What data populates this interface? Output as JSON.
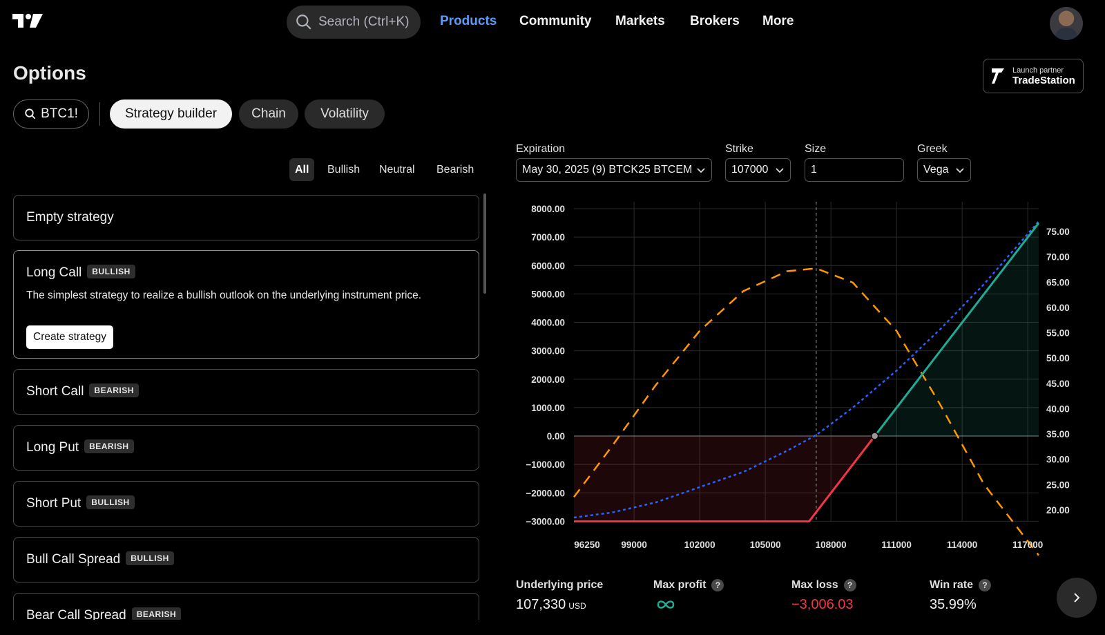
{
  "header": {
    "search_placeholder": "Search (Ctrl+K)",
    "nav": [
      "Products",
      "Community",
      "Markets",
      "Brokers",
      "More"
    ],
    "active_nav": "Products"
  },
  "page": {
    "title": "Options",
    "partner_small": "Launch partner",
    "partner_big": "TradeStation"
  },
  "toolbar": {
    "symbol": "BTC1!",
    "tabs": [
      "Strategy builder",
      "Chain",
      "Volatility"
    ],
    "active_tab": "Strategy builder"
  },
  "filters": {
    "items": [
      "All",
      "Bullish",
      "Neutral",
      "Bearish"
    ],
    "active": "All"
  },
  "strategies": [
    {
      "title": "Empty strategy",
      "badge": ""
    },
    {
      "title": "Long Call",
      "badge": "BULLISH",
      "description": "The simplest strategy to realize a bullish outlook on the underlying instrument price.",
      "button": "Create strategy"
    },
    {
      "title": "Short Call",
      "badge": "BEARISH"
    },
    {
      "title": "Long Put",
      "badge": "BEARISH"
    },
    {
      "title": "Short Put",
      "badge": "BULLISH"
    },
    {
      "title": "Bull Call Spread",
      "badge": "BULLISH"
    },
    {
      "title": "Bear Call Spread",
      "badge": "BEARISH"
    }
  ],
  "controls": {
    "expiration_label": "Expiration",
    "expiration_value": "May 30, 2025 (9) BTCK25 BTCEM",
    "strike_label": "Strike",
    "strike_value": "107000",
    "size_label": "Size",
    "size_value": "1",
    "greek_label": "Greek",
    "greek_value": "Vega"
  },
  "chart_data": {
    "type": "line",
    "left_axis_ticks": [
      "8000.00",
      "7000.00",
      "6000.00",
      "5000.00",
      "4000.00",
      "3000.00",
      "2000.00",
      "1000.00",
      "0.00",
      "−1000.00",
      "−2000.00",
      "−3000.00"
    ],
    "right_axis_ticks": [
      "75.00",
      "70.00",
      "65.00",
      "60.00",
      "55.00",
      "50.00",
      "45.00",
      "40.00",
      "35.00",
      "30.00",
      "25.00",
      "20.00"
    ],
    "x_ticks": [
      "96250",
      "99000",
      "102000",
      "105000",
      "108000",
      "111000",
      "114000",
      "117000"
    ],
    "ylim": [
      -3500,
      8000
    ],
    "y2lim": [
      17.5,
      79.5
    ],
    "xlim": [
      96250,
      117500
    ],
    "current_price": 107330,
    "breakeven": 110005,
    "series": [
      {
        "role": "pnl_expiration",
        "x": [
          96250,
          107000,
          110005,
          117500
        ],
        "y": [
          -3006.03,
          -3006.03,
          0,
          7494
        ]
      },
      {
        "role": "vega",
        "axis": "right",
        "x": [
          96250,
          98000,
          100000,
          102000,
          104000,
          106000,
          107330,
          109000,
          111000,
          113000,
          115000,
          117500
        ],
        "y": [
          18.5,
          19.5,
          21.5,
          24.5,
          27.5,
          31.7,
          34.8,
          40.2,
          47.5,
          55.7,
          64.6,
          77.0
        ]
      },
      {
        "role": "pnl_today",
        "x": [
          96250,
          98000,
          100000,
          102000,
          104000,
          106000,
          107330,
          109000,
          111000,
          113000,
          115000,
          117500
        ],
        "y": [
          -2150,
          -350,
          1800,
          3700,
          5100,
          5800,
          5900,
          5400,
          3700,
          1100,
          -1700,
          -4200
        ]
      }
    ],
    "colors": {
      "profit": "#22ab94",
      "loss": "#f23645",
      "vega": "#2962ff",
      "today": "#ff9800"
    }
  },
  "stats": {
    "underlying_label": "Underlying price",
    "underlying_value": "107,330",
    "underlying_unit": "USD",
    "max_profit_label": "Max profit",
    "max_loss_label": "Max loss",
    "max_loss_value": "−3,006.03",
    "win_rate_label": "Win rate",
    "win_rate_value": "35.99%"
  }
}
